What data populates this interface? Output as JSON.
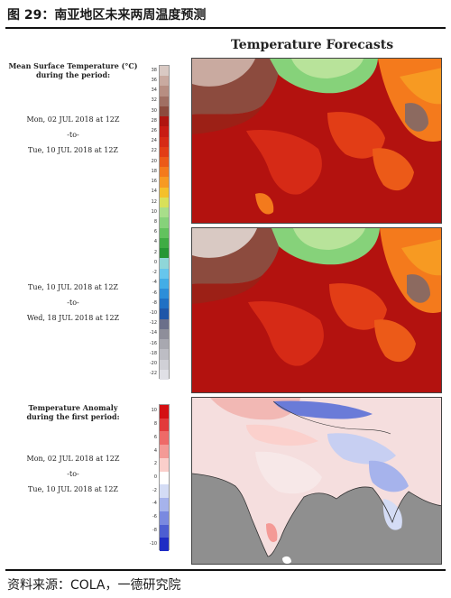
{
  "figure": {
    "title": "图 29：南亚地区未来两周温度预测",
    "source": "资料来源：COLA，一德研究院"
  },
  "main_title": "Temperature Forecasts",
  "panels": {
    "temp_label": "Mean Surface Temperature (°C)\nduring the period:",
    "period1": {
      "start": "Mon, 02 JUL 2018 at 12Z",
      "sep": "-to-",
      "end": "Tue, 10 JUL 2018 at 12Z"
    },
    "period2": {
      "start": "Tue, 10 JUL 2018 at 12Z",
      "sep": "-to-",
      "end": "Wed, 18 JUL 2018 at 12Z"
    },
    "anomaly_label": "Temperature Anomaly\nduring the first period:",
    "period3": {
      "start": "Mon, 02 JUL 2018 at 12Z",
      "sep": "-to-",
      "end": "Tue, 10 JUL 2018 at 12Z"
    }
  },
  "temp_scale": {
    "ticks": [
      "38",
      "36",
      "34",
      "32",
      "30",
      "28",
      "26",
      "24",
      "22",
      "20",
      "18",
      "16",
      "14",
      "12",
      "10",
      "8",
      "6",
      "4",
      "2",
      "0",
      "-2",
      "-4",
      "-6",
      "-8",
      "-10",
      "-12",
      "-14",
      "-16",
      "-18",
      "-20",
      "-22"
    ],
    "colors": [
      "#d9c9c3",
      "#c9aaa0",
      "#b78e82",
      "#a06f63",
      "#8c4b3e",
      "#b01510",
      "#c81c14",
      "#d62a16",
      "#e23d16",
      "#ec5a18",
      "#f47a1c",
      "#f79a22",
      "#f4c02a",
      "#d8e05a",
      "#a8de8a",
      "#86d27a",
      "#62c25e",
      "#3fac44",
      "#259634",
      "#8fd6d8",
      "#67c6ec",
      "#43ade6",
      "#2d8ed9",
      "#2070c4",
      "#1f56a8",
      "#6b6f8a",
      "#8e8e9a",
      "#a8a8b0",
      "#bdbdc4",
      "#d0d0d6",
      "#e0e0e6"
    ]
  },
  "anom_scale": {
    "ticks": [
      "10",
      "8",
      "6",
      "4",
      "2",
      "0",
      "-2",
      "-4",
      "-6",
      "-8",
      "-10"
    ],
    "colors": [
      "#d40f12",
      "#e23a3b",
      "#ee6a68",
      "#f49a96",
      "#fbcfcb",
      "#ffffff",
      "#d4dcf5",
      "#a6b3ec",
      "#7a89e0",
      "#4d5ed2",
      "#1f2cc4"
    ]
  }
}
